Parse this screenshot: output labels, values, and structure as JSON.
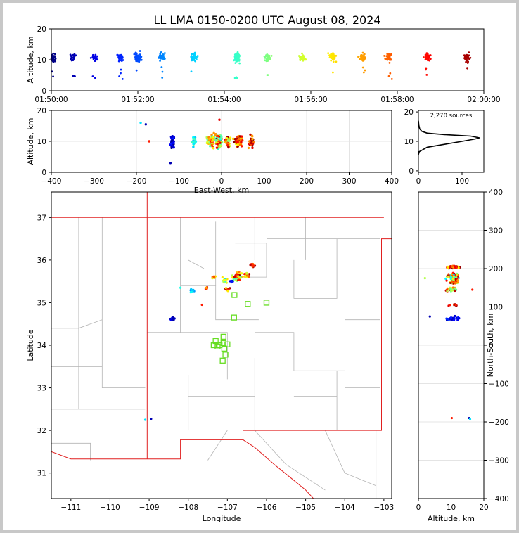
{
  "chart_data": [
    {
      "panel": "altitude-vs-time",
      "type": "scatter",
      "title": "LL LMA 0150-0200 UTC August 08, 2024",
      "xlabel": "",
      "ylabel": "Altitude, km",
      "xlim": [
        "01:50:00",
        "02:00:00"
      ],
      "xticks": [
        "01:50:00",
        "01:52:00",
        "01:54:00",
        "01:56:00",
        "01:58:00",
        "02:00:00"
      ],
      "ylim": [
        0,
        20
      ],
      "yticks": [
        "0",
        "10",
        "20"
      ],
      "colormap": "jet (by time)",
      "grid": false,
      "clusters": [
        {
          "t_min": 0.05,
          "alt": 10.5,
          "spread": 1.6,
          "n": 40
        },
        {
          "t_min": 0.5,
          "alt": 10.8,
          "spread": 1.4,
          "n": 30
        },
        {
          "t_min": 1.0,
          "alt": 10.5,
          "spread": 1.3,
          "n": 25
        },
        {
          "t_min": 1.6,
          "alt": 10.7,
          "spread": 1.6,
          "n": 30
        },
        {
          "t_min": 2.0,
          "alt": 10.8,
          "spread": 2.2,
          "n": 50
        },
        {
          "t_min": 2.55,
          "alt": 10.7,
          "spread": 1.6,
          "n": 45
        },
        {
          "t_min": 3.3,
          "alt": 10.8,
          "spread": 1.6,
          "n": 35
        },
        {
          "t_min": 4.3,
          "alt": 10.6,
          "spread": 1.8,
          "n": 60
        },
        {
          "t_min": 5.0,
          "alt": 10.8,
          "spread": 1.5,
          "n": 40
        },
        {
          "t_min": 5.8,
          "alt": 10.6,
          "spread": 1.4,
          "n": 40
        },
        {
          "t_min": 6.5,
          "alt": 10.9,
          "spread": 1.6,
          "n": 45
        },
        {
          "t_min": 7.2,
          "alt": 10.8,
          "spread": 1.6,
          "n": 45
        },
        {
          "t_min": 7.8,
          "alt": 10.7,
          "spread": 1.6,
          "n": 45
        },
        {
          "t_min": 8.7,
          "alt": 10.8,
          "spread": 1.5,
          "n": 45
        },
        {
          "t_min": 9.6,
          "alt": 10.6,
          "spread": 1.6,
          "n": 40
        }
      ]
    },
    {
      "panel": "altitude-vs-east-west",
      "type": "scatter",
      "xlabel": "East-West, km",
      "ylabel": "Altitude, km",
      "xlim": [
        -400,
        400
      ],
      "xticks": [
        "−400",
        "−300",
        "−200",
        "−100",
        "0",
        "100",
        "200",
        "300",
        "400"
      ],
      "ylim": [
        0,
        20
      ],
      "yticks": [
        "0",
        "10",
        "20"
      ],
      "grid": true
    },
    {
      "panel": "altitude-histogram",
      "type": "line",
      "annotation": "2,270 sources",
      "xlim": [
        0,
        150
      ],
      "xticks": [
        "0",
        "100"
      ],
      "ylim": [
        0,
        20
      ],
      "yticks": [
        "0",
        "10",
        "20"
      ],
      "profile": [
        [
          0,
          5.5
        ],
        [
          2,
          6.5
        ],
        [
          8,
          7.0
        ],
        [
          20,
          8.0
        ],
        [
          60,
          9.0
        ],
        [
          100,
          10.0
        ],
        [
          130,
          10.8
        ],
        [
          140,
          11.2
        ],
        [
          120,
          11.8
        ],
        [
          60,
          12.3
        ],
        [
          20,
          12.8
        ],
        [
          8,
          13.4
        ],
        [
          3,
          14.2
        ],
        [
          1,
          15.5
        ],
        [
          0,
          17
        ]
      ]
    },
    {
      "panel": "plan-view-map",
      "type": "scatter",
      "xlabel": "Longitude",
      "ylabel": "Latitude",
      "xlim": [
        -111.5,
        -102.8
      ],
      "xticks": [
        "−111",
        "−110",
        "−109",
        "−108",
        "−107",
        "−106",
        "−105",
        "−104",
        "−103"
      ],
      "ylim": [
        30.4,
        37.6
      ],
      "yticks": [
        "31",
        "32",
        "33",
        "34",
        "35",
        "36",
        "37"
      ],
      "stations": [
        [
          -106.82,
          35.18
        ],
        [
          -106.48,
          34.97
        ],
        [
          -106.0,
          35.0
        ],
        [
          -106.83,
          34.65
        ],
        [
          -107.1,
          34.2
        ],
        [
          -107.1,
          34.05
        ],
        [
          -107.2,
          34.0
        ],
        [
          -107.3,
          34.1
        ],
        [
          -107.35,
          34.0
        ],
        [
          -107.25,
          33.97
        ],
        [
          -107.0,
          34.02
        ],
        [
          -107.08,
          33.92
        ],
        [
          -107.05,
          33.78
        ],
        [
          -107.12,
          33.64
        ]
      ]
    },
    {
      "panel": "north-south-vs-altitude",
      "type": "scatter",
      "xlabel": "Altitude, km",
      "ylabel": "North-South, km",
      "xlim": [
        0,
        20
      ],
      "xticks": [
        "0",
        "10",
        "20"
      ],
      "ylim": [
        -400,
        400
      ],
      "yticks": [
        "−400",
        "−300",
        "−200",
        "−100",
        "0",
        "100",
        "200",
        "300",
        "400"
      ],
      "grid": true
    }
  ]
}
